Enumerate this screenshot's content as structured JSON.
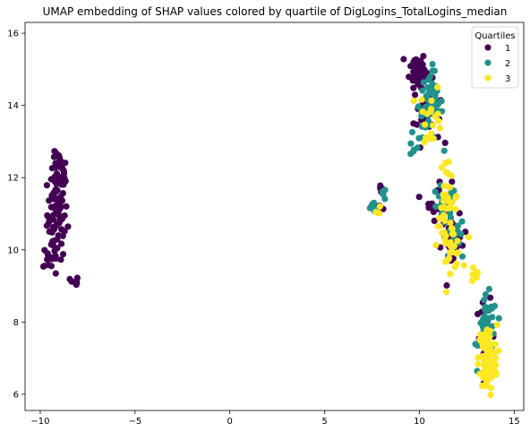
{
  "chart_data": {
    "type": "scatter",
    "title": "UMAP embedding of SHAP values colored by quartile of DigLogins_TotalLogins_median",
    "xlabel": "",
    "ylabel": "",
    "xlim": [
      -10.8,
      15.5
    ],
    "ylim": [
      5.55,
      16.3
    ],
    "xticks": [
      -10,
      -5,
      0,
      5,
      10,
      15
    ],
    "xtick_labels": [
      "−10",
      "−5",
      "0",
      "5",
      "10",
      "15"
    ],
    "yticks": [
      6,
      8,
      10,
      12,
      14,
      16
    ],
    "ytick_labels": [
      "6",
      "8",
      "10",
      "12",
      "14",
      "16"
    ],
    "grid": false,
    "legend": {
      "title": "Quartiles",
      "placement": "upper right",
      "entries": [
        "1",
        "2",
        "3"
      ]
    },
    "colors": {
      "1": "#440154",
      "2": "#21918c",
      "3": "#fde725"
    },
    "series": [
      {
        "name": "1",
        "clusters": [
          {
            "cx": -9.1,
            "cy": 11.0,
            "sx": 0.38,
            "sy": 0.9,
            "n": 80
          },
          {
            "cx": -9.0,
            "cy": 12.2,
            "sx": 0.3,
            "sy": 0.35,
            "n": 25
          },
          {
            "cx": -9.5,
            "cy": 9.8,
            "sx": 0.25,
            "sy": 0.25,
            "n": 14
          },
          {
            "cx": -8.2,
            "cy": 9.1,
            "sx": 0.15,
            "sy": 0.12,
            "n": 8
          },
          {
            "cx": 9.9,
            "cy": 15.0,
            "sx": 0.3,
            "sy": 0.35,
            "n": 60
          },
          {
            "cx": 10.4,
            "cy": 13.8,
            "sx": 0.5,
            "sy": 0.6,
            "n": 35
          },
          {
            "cx": 7.6,
            "cy": 11.15,
            "sx": 0.25,
            "sy": 0.1,
            "n": 6
          },
          {
            "cx": 8.0,
            "cy": 11.7,
            "sx": 0.12,
            "sy": 0.15,
            "n": 4
          },
          {
            "cx": 11.0,
            "cy": 11.4,
            "sx": 0.5,
            "sy": 0.4,
            "n": 20
          },
          {
            "cx": 11.8,
            "cy": 10.2,
            "sx": 0.5,
            "sy": 0.5,
            "n": 25
          },
          {
            "cx": 13.5,
            "cy": 7.6,
            "sx": 0.35,
            "sy": 0.7,
            "n": 25
          }
        ]
      },
      {
        "name": "2",
        "clusters": [
          {
            "cx": 10.6,
            "cy": 14.0,
            "sx": 0.45,
            "sy": 0.7,
            "n": 60
          },
          {
            "cx": 9.7,
            "cy": 12.8,
            "sx": 0.25,
            "sy": 0.2,
            "n": 6
          },
          {
            "cx": 7.6,
            "cy": 11.2,
            "sx": 0.25,
            "sy": 0.12,
            "n": 8
          },
          {
            "cx": 8.1,
            "cy": 11.55,
            "sx": 0.12,
            "sy": 0.12,
            "n": 4
          },
          {
            "cx": 11.2,
            "cy": 11.2,
            "sx": 0.55,
            "sy": 0.4,
            "n": 15
          },
          {
            "cx": 11.8,
            "cy": 10.3,
            "sx": 0.45,
            "sy": 0.45,
            "n": 20
          },
          {
            "cx": 13.6,
            "cy": 7.8,
            "sx": 0.35,
            "sy": 0.65,
            "n": 45
          }
        ]
      },
      {
        "name": "3",
        "clusters": [
          {
            "cx": 10.6,
            "cy": 13.7,
            "sx": 0.45,
            "sy": 0.6,
            "n": 20
          },
          {
            "cx": 11.4,
            "cy": 12.3,
            "sx": 0.15,
            "sy": 0.15,
            "n": 5
          },
          {
            "cx": 7.9,
            "cy": 11.1,
            "sx": 0.15,
            "sy": 0.1,
            "n": 4
          },
          {
            "cx": 11.5,
            "cy": 11.3,
            "sx": 0.45,
            "sy": 0.45,
            "n": 25
          },
          {
            "cx": 11.6,
            "cy": 10.1,
            "sx": 0.45,
            "sy": 0.45,
            "n": 30
          },
          {
            "cx": 12.9,
            "cy": 9.3,
            "sx": 0.2,
            "sy": 0.2,
            "n": 6
          },
          {
            "cx": 13.6,
            "cy": 7.0,
            "sx": 0.35,
            "sy": 0.65,
            "n": 90
          }
        ]
      }
    ]
  }
}
